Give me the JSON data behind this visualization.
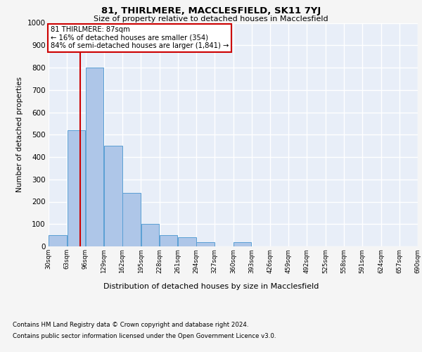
{
  "title1": "81, THIRLMERE, MACCLESFIELD, SK11 7YJ",
  "title2": "Size of property relative to detached houses in Macclesfield",
  "xlabel": "Distribution of detached houses by size in Macclesfield",
  "ylabel": "Number of detached properties",
  "footnote1": "Contains HM Land Registry data © Crown copyright and database right 2024.",
  "footnote2": "Contains public sector information licensed under the Open Government Licence v3.0.",
  "bar_left_edges": [
    30,
    63,
    96,
    129,
    162,
    195,
    228,
    261,
    294,
    327,
    360,
    393,
    426,
    459,
    492,
    525,
    558,
    591,
    624,
    657
  ],
  "bar_heights": [
    50,
    520,
    800,
    450,
    240,
    100,
    50,
    40,
    20,
    0,
    20,
    0,
    0,
    0,
    0,
    0,
    0,
    0,
    0,
    0
  ],
  "bin_width": 33,
  "bar_color": "#aec6e8",
  "bar_edge_color": "#5a9fd4",
  "background_color": "#e8eef8",
  "grid_color": "#ffffff",
  "property_line_x": 87,
  "property_line_color": "#cc0000",
  "annotation_text": "81 THIRLMERE: 87sqm\n← 16% of detached houses are smaller (354)\n84% of semi-detached houses are larger (1,841) →",
  "annotation_box_color": "#ffffff",
  "annotation_box_edge_color": "#cc0000",
  "xlim_left": 30,
  "xlim_right": 690,
  "ylim_top": 1000,
  "yticks": [
    0,
    100,
    200,
    300,
    400,
    500,
    600,
    700,
    800,
    900,
    1000
  ],
  "xtick_labels": [
    "30sqm",
    "63sqm",
    "96sqm",
    "129sqm",
    "162sqm",
    "195sqm",
    "228sqm",
    "261sqm",
    "294sqm",
    "327sqm",
    "360sqm",
    "393sqm",
    "426sqm",
    "459sqm",
    "492sqm",
    "525sqm",
    "558sqm",
    "591sqm",
    "624sqm",
    "657sqm",
    "690sqm"
  ],
  "xtick_positions": [
    30,
    63,
    96,
    129,
    162,
    195,
    228,
    261,
    294,
    327,
    360,
    393,
    426,
    459,
    492,
    525,
    558,
    591,
    624,
    657,
    690
  ],
  "fig_bg_color": "#f5f5f5"
}
